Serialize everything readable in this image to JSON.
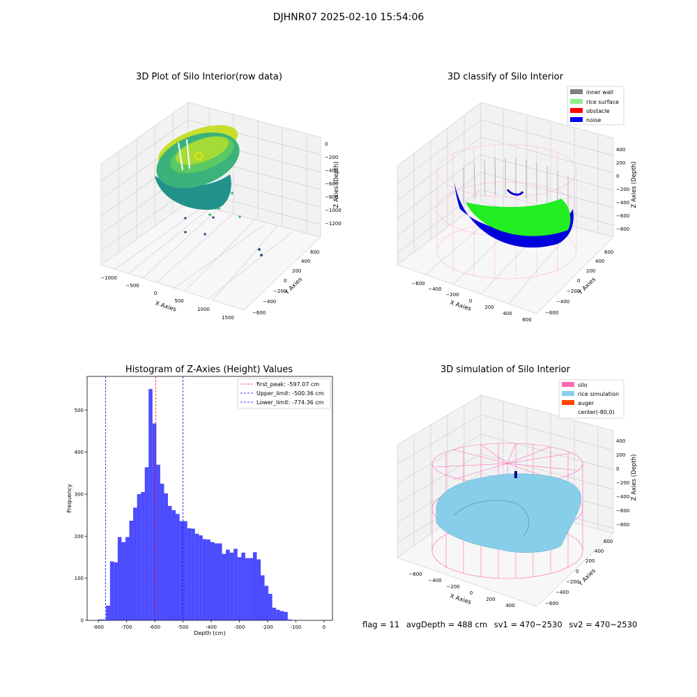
{
  "suptitle": "DJHNR07 2025-02-10 15:54:06",
  "panels": {
    "raw": {
      "title": "3D Plot of Silo Interior(row data)",
      "xlabel": "X Axies",
      "ylabel": "Y Axies",
      "zlabel": "Z Axies (Depth)",
      "xticks": [
        "−1000",
        "−500",
        "0",
        "500",
        "1000",
        "1500"
      ],
      "yticks": [
        "−600",
        "−400",
        "−200",
        "0",
        "200",
        "400",
        "600"
      ],
      "zticks": [
        "0",
        "−200",
        "−400",
        "−600",
        "−800",
        "−1000",
        "−1200"
      ]
    },
    "classify": {
      "title": "3D classify of Silo Interior",
      "xlabel": "X Axies",
      "ylabel": "Y Axies",
      "zlabel": "Z Axies (Depth)",
      "xticks": [
        "−600",
        "−400",
        "−200",
        "0",
        "200",
        "400",
        "600"
      ],
      "yticks": [
        "−600",
        "−400",
        "−200",
        "0",
        "200",
        "400",
        "600"
      ],
      "zticks": [
        "400",
        "200",
        "0",
        "−200",
        "−400",
        "−600",
        "−800"
      ],
      "legend": [
        {
          "label": "inner wall",
          "color": "#808080"
        },
        {
          "label": "rice surface",
          "color": "#90ee90"
        },
        {
          "label": "obstacle",
          "color": "#ff0000"
        },
        {
          "label": "noise",
          "color": "#0000ff"
        }
      ]
    },
    "simulation": {
      "title": "3D simulation of Silo Interior",
      "xlabel": "X Axies",
      "ylabel": "Y Axies",
      "zlabel": "Z Axies (Depth)",
      "xticks": [
        "−600",
        "−400",
        "−200",
        "0",
        "200",
        "400"
      ],
      "yticks": [
        "−600",
        "−400",
        "−200",
        "0",
        "200",
        "400",
        "600"
      ],
      "zticks": [
        "400",
        "200",
        "0",
        "−200",
        "−400",
        "−600",
        "−800"
      ],
      "legend": [
        {
          "label": "silo",
          "color": "#ff69b4"
        },
        {
          "label": "rice simulation",
          "color": "#87ceeb"
        },
        {
          "label": "auger",
          "color": "#ff4500"
        },
        {
          "label": "center(-80,0)",
          "color": "#ffffff"
        }
      ]
    }
  },
  "chart_data": [
    {
      "type": "bar",
      "title": "Histogram of Z-Axies (Height) Values",
      "xlabel": "Depth (cm)",
      "ylabel": "Frequency",
      "xlim": [
        -840,
        30
      ],
      "ylim": [
        0,
        580
      ],
      "xticks": [
        -800,
        -700,
        -600,
        -500,
        -400,
        -300,
        -200,
        -100,
        0
      ],
      "yticks": [
        0,
        100,
        200,
        300,
        400,
        500
      ],
      "bin_start": -800,
      "bin_width": 13.7,
      "counts": [
        2,
        2,
        35,
        140,
        138,
        198,
        186,
        198,
        237,
        268,
        300,
        305,
        364,
        550,
        468,
        370,
        325,
        302,
        272,
        262,
        253,
        236,
        236,
        219,
        218,
        206,
        202,
        193,
        192,
        186,
        183,
        183,
        158,
        168,
        161,
        170,
        150,
        161,
        148,
        148,
        162,
        145,
        107,
        82,
        63,
        30,
        25,
        22,
        20,
        2
      ],
      "color": "#0000ff",
      "lines": [
        {
          "x": -597.07,
          "label": "first_peak: -597.07 cm",
          "color": "#ff0000"
        },
        {
          "x": -500.36,
          "label": "Upper_limit: -500.36 cm",
          "color": "#0000ff"
        },
        {
          "x": -774.36,
          "label": "Lower_limit: -774.36 cm",
          "color": "#0000ff"
        }
      ],
      "legend_position": "upper right"
    }
  ],
  "status": {
    "flag": "flag = 11",
    "avg": "avgDepth = 488 cm",
    "sv1": "sv1 = 470~2530",
    "sv2": "sv2 = 470~2530"
  }
}
